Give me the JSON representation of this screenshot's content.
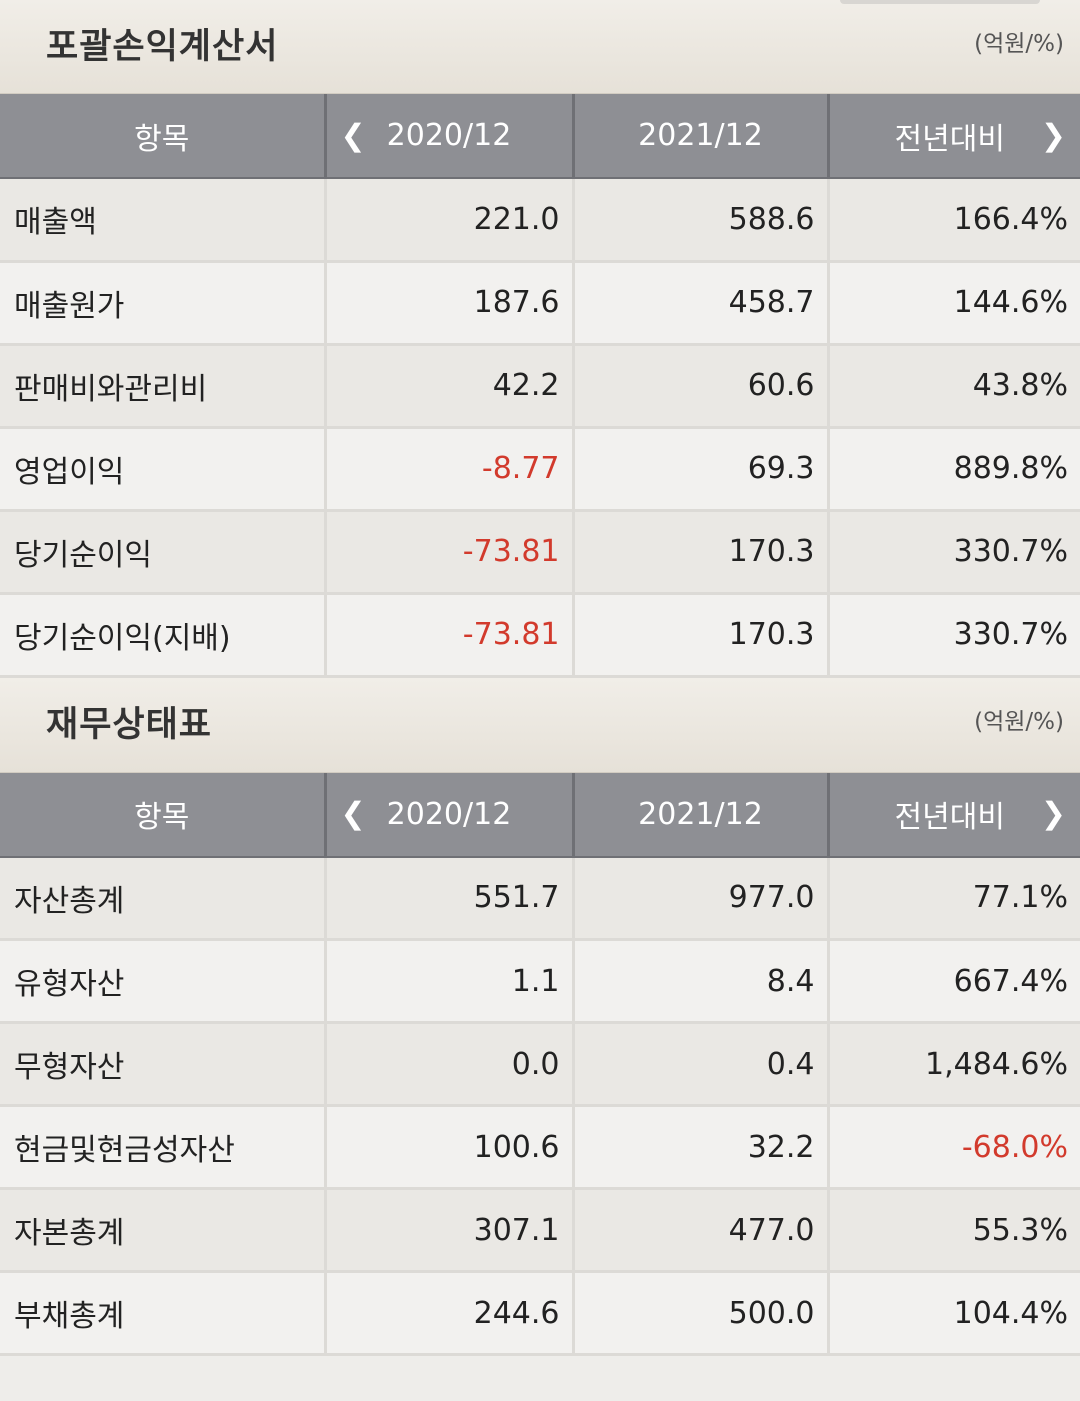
{
  "income": {
    "title": "포괄손익계산서",
    "unit": "(억원/%)",
    "headers": {
      "item": "항목",
      "y1": "2020/12",
      "y2": "2021/12",
      "yoy": "전년대비"
    },
    "rows": [
      {
        "label": "매출액",
        "v1": "221.0",
        "v2": "588.6",
        "v3": "166.4%",
        "neg1": false,
        "neg3": false
      },
      {
        "label": "매출원가",
        "v1": "187.6",
        "v2": "458.7",
        "v3": "144.6%",
        "neg1": false,
        "neg3": false
      },
      {
        "label": "판매비와관리비",
        "v1": "42.2",
        "v2": "60.6",
        "v3": "43.8%",
        "neg1": false,
        "neg3": false
      },
      {
        "label": "영업이익",
        "v1": "-8.77",
        "v2": "69.3",
        "v3": "889.8%",
        "neg1": true,
        "neg3": false
      },
      {
        "label": "당기순이익",
        "v1": "-73.81",
        "v2": "170.3",
        "v3": "330.7%",
        "neg1": true,
        "neg3": false
      },
      {
        "label": "당기순이익(지배)",
        "v1": "-73.81",
        "v2": "170.3",
        "v3": "330.7%",
        "neg1": true,
        "neg3": false
      }
    ]
  },
  "balance": {
    "title": "재무상태표",
    "unit": "(억원/%)",
    "headers": {
      "item": "항목",
      "y1": "2020/12",
      "y2": "2021/12",
      "yoy": "전년대비"
    },
    "rows": [
      {
        "label": "자산총계",
        "v1": "551.7",
        "v2": "977.0",
        "v3": "77.1%",
        "neg1": false,
        "neg3": false
      },
      {
        "label": "유형자산",
        "v1": "1.1",
        "v2": "8.4",
        "v3": "667.4%",
        "neg1": false,
        "neg3": false
      },
      {
        "label": "무형자산",
        "v1": "0.0",
        "v2": "0.4",
        "v3": "1,484.6%",
        "neg1": false,
        "neg3": false
      },
      {
        "label": "현금및현금성자산",
        "v1": "100.6",
        "v2": "32.2",
        "v3": "-68.0%",
        "neg1": false,
        "neg3": true
      },
      {
        "label": "자본총계",
        "v1": "307.1",
        "v2": "477.0",
        "v3": "55.3%",
        "neg1": false,
        "neg3": false
      },
      {
        "label": "부채총계",
        "v1": "244.6",
        "v2": "500.0",
        "v3": "104.4%",
        "neg1": false,
        "neg3": false
      }
    ]
  },
  "icons": {
    "prev": "chevron-left-icon",
    "next": "chevron-right-icon"
  },
  "colors": {
    "negative": "#d23a2c",
    "header_bg": "#8e8f94"
  }
}
